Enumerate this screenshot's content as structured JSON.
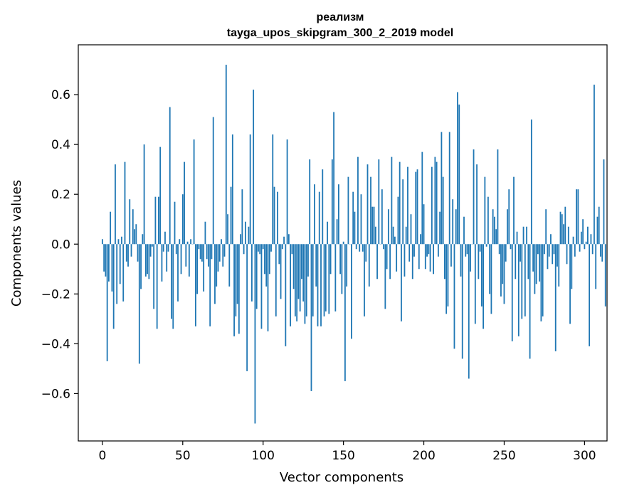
{
  "chart_data": {
    "type": "bar",
    "title": "реализм",
    "subtitle": "tayga_upos_skipgram_300_2_2019 model",
    "xlabel": "Vector components",
    "ylabel": "Components values",
    "xlim": [
      -15,
      314
    ],
    "ylim": [
      -0.79,
      0.8
    ],
    "x_ticks": [
      0,
      50,
      100,
      150,
      200,
      250,
      300
    ],
    "x_tick_labels": [
      "0",
      "50",
      "100",
      "150",
      "200",
      "250",
      "300"
    ],
    "y_ticks": [
      -0.6,
      -0.4,
      -0.2,
      0.0,
      0.2,
      0.4,
      0.6
    ],
    "y_tick_labels": [
      "−0.6",
      "−0.4",
      "−0.2",
      "0.0",
      "0.2",
      "0.4",
      "0.6"
    ],
    "bar_color": "#1f77b4",
    "grid": false,
    "series": [
      {
        "name": "реализм",
        "values": [
          0.02,
          -0.11,
          -0.13,
          -0.47,
          -0.15,
          0.13,
          -0.19,
          -0.34,
          0.32,
          -0.24,
          0.02,
          -0.16,
          0.03,
          -0.23,
          0.33,
          -0.07,
          -0.09,
          0.18,
          -0.05,
          0.14,
          0.06,
          0.08,
          -0.07,
          -0.48,
          -0.18,
          0.04,
          0.4,
          -0.13,
          -0.12,
          -0.14,
          -0.05,
          -0.01,
          -0.26,
          0.19,
          -0.34,
          0.19,
          0.39,
          -0.15,
          -0.03,
          0.05,
          -0.11,
          -0.03,
          0.55,
          -0.3,
          -0.34,
          0.17,
          -0.04,
          -0.23,
          0.02,
          -0.12,
          0.2,
          0.33,
          -0.09,
          0.01,
          -0.13,
          0.02,
          0.0,
          0.42,
          -0.33,
          -0.2,
          -0.02,
          -0.06,
          -0.07,
          -0.19,
          0.09,
          -0.06,
          -0.09,
          -0.33,
          -0.06,
          0.51,
          -0.24,
          -0.17,
          -0.11,
          -0.07,
          0.02,
          -0.09,
          -0.05,
          0.72,
          0.12,
          -0.17,
          0.23,
          0.44,
          -0.37,
          -0.29,
          -0.24,
          -0.36,
          0.04,
          0.22,
          -0.04,
          0.09,
          -0.51,
          0.07,
          0.44,
          -0.23,
          0.62,
          -0.72,
          -0.26,
          -0.03,
          -0.04,
          -0.34,
          -0.02,
          -0.12,
          -0.17,
          -0.35,
          -0.12,
          -0.03,
          0.44,
          0.23,
          -0.29,
          0.21,
          -0.08,
          -0.22,
          -0.02,
          0.03,
          -0.41,
          0.42,
          0.04,
          -0.33,
          -0.04,
          -0.18,
          -0.29,
          -0.31,
          -0.22,
          -0.27,
          -0.14,
          -0.23,
          -0.32,
          -0.29,
          -0.13,
          0.34,
          -0.59,
          -0.29,
          0.24,
          -0.17,
          -0.33,
          0.21,
          -0.33,
          0.3,
          -0.29,
          -0.27,
          0.09,
          -0.28,
          -0.12,
          0.34,
          0.53,
          -0.27,
          0.1,
          0.24,
          -0.12,
          -0.2,
          0.01,
          -0.55,
          -0.17,
          0.27,
          0.0,
          -0.38,
          0.21,
          0.13,
          -0.02,
          0.35,
          -0.03,
          0.2,
          -0.03,
          -0.29,
          -0.07,
          0.32,
          -0.17,
          0.27,
          0.15,
          0.15,
          0.07,
          -0.14,
          0.34,
          0.0,
          0.22,
          -0.02,
          -0.26,
          -0.1,
          0.14,
          -0.14,
          0.35,
          0.07,
          0.03,
          -0.11,
          0.19,
          0.33,
          -0.31,
          0.26,
          -0.13,
          0.07,
          0.31,
          -0.07,
          0.12,
          -0.14,
          -0.05,
          0.29,
          0.3,
          -0.1,
          0.04,
          0.37,
          0.16,
          -0.1,
          -0.05,
          -0.04,
          -0.11,
          0.31,
          -0.12,
          0.35,
          0.33,
          -0.05,
          0.13,
          0.45,
          0.27,
          -0.14,
          -0.28,
          -0.25,
          0.45,
          -0.09,
          0.18,
          -0.42,
          0.14,
          0.61,
          0.56,
          -0.13,
          -0.46,
          0.11,
          -0.05,
          -0.04,
          -0.54,
          -0.11,
          0.0,
          0.38,
          -0.32,
          0.32,
          -0.14,
          -0.03,
          -0.25,
          -0.34,
          0.27,
          -0.01,
          0.19,
          -0.2,
          -0.28,
          0.14,
          0.11,
          0.06,
          0.38,
          -0.04,
          -0.21,
          -0.16,
          -0.24,
          -0.07,
          0.14,
          0.22,
          -0.02,
          -0.39,
          0.27,
          -0.14,
          0.05,
          -0.37,
          -0.07,
          -0.3,
          0.07,
          -0.29,
          0.07,
          -0.14,
          -0.46,
          0.5,
          -0.11,
          -0.2,
          -0.16,
          -0.04,
          -0.15,
          -0.31,
          -0.29,
          -0.04,
          0.14,
          -0.1,
          -0.05,
          0.04,
          -0.08,
          -0.04,
          -0.43,
          -0.09,
          -0.17,
          0.13,
          0.12,
          0.08,
          0.15,
          -0.08,
          0.07,
          -0.32,
          -0.18,
          0.03,
          -0.05,
          0.22,
          0.22,
          -0.03,
          0.05,
          0.1,
          -0.02,
          0.01,
          0.07,
          -0.41,
          0.04,
          -0.04,
          0.64,
          -0.18,
          0.11,
          0.15,
          -0.05,
          -0.07,
          0.34,
          -0.25
        ]
      }
    ]
  }
}
